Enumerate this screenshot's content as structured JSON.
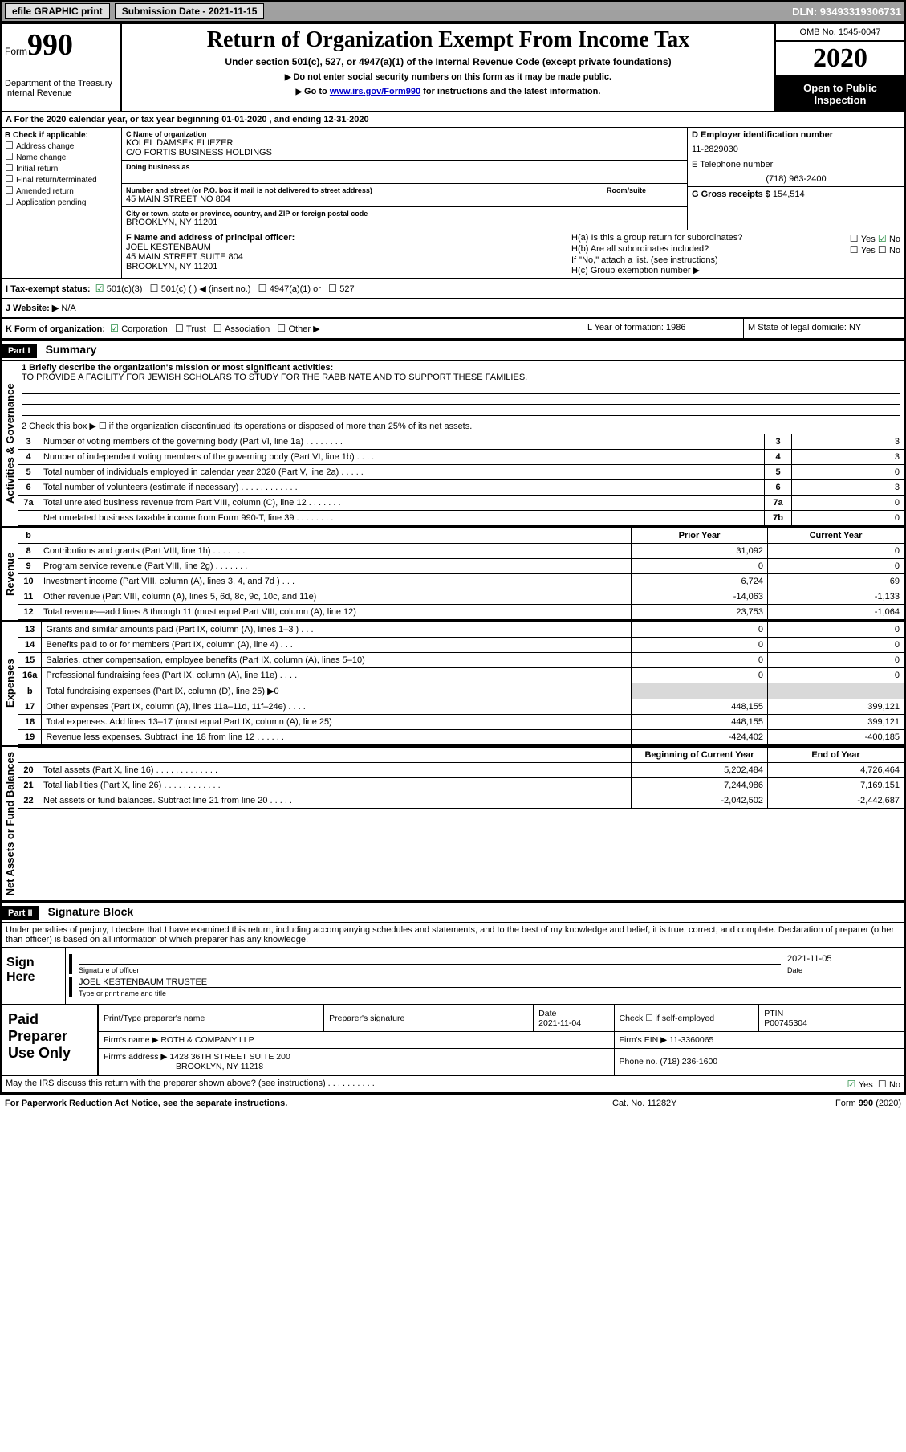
{
  "topbar": {
    "efile": "efile GRAPHIC print",
    "submission_label": "Submission Date - 2021-11-15",
    "dln": "DLN: 93493319306731"
  },
  "header": {
    "form_label": "Form",
    "form_number": "990",
    "dept": "Department of the Treasury\nInternal Revenue",
    "title": "Return of Organization Exempt From Income Tax",
    "subtitle": "Under section 501(c), 527, or 4947(a)(1) of the Internal Revenue Code (except private foundations)",
    "note1": "Do not enter social security numbers on this form as it may be made public.",
    "note2_pre": "Go to ",
    "note2_link": "www.irs.gov/Form990",
    "note2_post": " for instructions and the latest information.",
    "omb": "OMB No. 1545-0047",
    "year": "2020",
    "open": "Open to Public Inspection"
  },
  "lineA": "For the 2020 calendar year, or tax year beginning 01-01-2020     , and ending 12-31-2020",
  "boxB": {
    "label": "B Check if applicable:",
    "opts": [
      "Address change",
      "Name change",
      "Initial return",
      "Final return/terminated",
      "Amended return",
      "Application pending"
    ]
  },
  "boxC": {
    "name_lbl": "C Name of organization",
    "name": "KOLEL DAMSEK ELIEZER",
    "care_of": "C/O FORTIS BUSINESS HOLDINGS",
    "dba_lbl": "Doing business as",
    "addr_lbl": "Number and street (or P.O. box if mail is not delivered to street address)",
    "room_lbl": "Room/suite",
    "addr": "45 MAIN STREET NO 804",
    "city_lbl": "City or town, state or province, country, and ZIP or foreign postal code",
    "city": "BROOKLYN, NY  11201"
  },
  "boxD": {
    "lbl": "D Employer identification number",
    "val": "11-2829030"
  },
  "boxE": {
    "lbl": "E Telephone number",
    "val": "(718) 963-2400"
  },
  "boxG": {
    "lbl": "G Gross receipts $",
    "val": "154,514"
  },
  "boxF": {
    "lbl": "F  Name and address of principal officer:",
    "name": "JOEL KESTENBAUM",
    "addr1": "45 MAIN STREET SUITE 804",
    "addr2": "BROOKLYN, NY  11201"
  },
  "boxH": {
    "a": "H(a)  Is this a group return for subordinates?",
    "b": "H(b)  Are all subordinates included?",
    "bnote": "If \"No,\" attach a list. (see instructions)",
    "c": "H(c)  Group exemption number ▶"
  },
  "boxI": {
    "lbl": "I  Tax-exempt status:",
    "opts": [
      "501(c)(3)",
      "501(c) (   ) ◀ (insert no.)",
      "4947(a)(1) or",
      "527"
    ]
  },
  "boxJ": {
    "lbl": "J  Website: ▶",
    "val": "N/A"
  },
  "boxK": {
    "lbl": "K Form of organization:",
    "opts": [
      "Corporation",
      "Trust",
      "Association",
      "Other ▶"
    ]
  },
  "boxL": {
    "lbl": "L Year of formation: 1986"
  },
  "boxM": {
    "lbl": "M State of legal domicile: NY"
  },
  "part1": {
    "bar": "Part I",
    "title": "Summary",
    "q1": "1  Briefly describe the organization's mission or most significant activities:",
    "q1ans": "TO PROVIDE A FACILITY FOR JEWISH SCHOLARS TO STUDY FOR THE RABBINATE AND TO SUPPORT THESE FAMILIES.",
    "q2": "2   Check this box ▶ ☐  if the organization discontinued its operations or disposed of more than 25% of its net assets."
  },
  "side_labels": {
    "gov": "Activities & Governance",
    "rev": "Revenue",
    "exp": "Expenses",
    "net": "Net Assets or Fund Balances"
  },
  "gov_lines": [
    {
      "n": "3",
      "d": "Number of voting members of the governing body (Part VI, line 1a)   .    .    .    .    .    .    .    .",
      "b": "3",
      "v": "3"
    },
    {
      "n": "4",
      "d": "Number of independent voting members of the governing body (Part VI, line 1b)  .    .    .    .",
      "b": "4",
      "v": "3"
    },
    {
      "n": "5",
      "d": "Total number of individuals employed in calendar year 2020 (Part V, line 2a)   .    .    .    .    .",
      "b": "5",
      "v": "0"
    },
    {
      "n": "6",
      "d": "Total number of volunteers (estimate if necessary)   .    .    .    .    .    .    .    .    .    .    .    .",
      "b": "6",
      "v": "3"
    },
    {
      "n": "7a",
      "d": "Total unrelated business revenue from Part VIII, column (C), line 12   .    .    .    .    .    .    .",
      "b": "7a",
      "v": "0"
    },
    {
      "n": "",
      "d": "Net unrelated business taxable income from Form 990-T, line 39    .    .    .    .    .    .    .    .",
      "b": "7b",
      "v": "0"
    }
  ],
  "two_hdr": {
    "b": "b",
    "prior": "Prior Year",
    "current": "Current Year"
  },
  "rev_lines": [
    {
      "n": "8",
      "d": "Contributions and grants (Part VIII, line 1h)   .    .    .    .    .    .    .",
      "p": "31,092",
      "c": "0"
    },
    {
      "n": "9",
      "d": "Program service revenue (Part VIII, line 2g)    .    .    .    .    .    .    .",
      "p": "0",
      "c": "0"
    },
    {
      "n": "10",
      "d": "Investment income (Part VIII, column (A), lines 3, 4, and 7d )   .    .    .",
      "p": "6,724",
      "c": "69"
    },
    {
      "n": "11",
      "d": "Other revenue (Part VIII, column (A), lines 5, 6d, 8c, 9c, 10c, and 11e)",
      "p": "-14,063",
      "c": "-1,133"
    },
    {
      "n": "12",
      "d": "Total revenue—add lines 8 through 11 (must equal Part VIII, column (A), line 12)",
      "p": "23,753",
      "c": "-1,064"
    }
  ],
  "exp_lines": [
    {
      "n": "13",
      "d": "Grants and similar amounts paid (Part IX, column (A), lines 1–3 )   .    .    .",
      "p": "0",
      "c": "0"
    },
    {
      "n": "14",
      "d": "Benefits paid to or for members (Part IX, column (A), line 4)   .    .    .",
      "p": "0",
      "c": "0"
    },
    {
      "n": "15",
      "d": "Salaries, other compensation, employee benefits (Part IX, column (A), lines 5–10)",
      "p": "0",
      "c": "0"
    },
    {
      "n": "16a",
      "d": "Professional fundraising fees (Part IX, column (A), line 11e)   .    .    .    .",
      "p": "0",
      "c": "0"
    },
    {
      "n": "b",
      "d": "Total fundraising expenses (Part IX, column (D), line 25) ▶0",
      "p": "",
      "c": "",
      "shade": true
    },
    {
      "n": "17",
      "d": "Other expenses (Part IX, column (A), lines 11a–11d, 11f–24e)   .    .    .    .",
      "p": "448,155",
      "c": "399,121"
    },
    {
      "n": "18",
      "d": "Total expenses. Add lines 13–17 (must equal Part IX, column (A), line 25)",
      "p": "448,155",
      "c": "399,121"
    },
    {
      "n": "19",
      "d": "Revenue less expenses. Subtract line 18 from line 12   .    .    .    .    .    .",
      "p": "-424,402",
      "c": "-400,185"
    }
  ],
  "net_hdr": {
    "begin": "Beginning of Current Year",
    "end": "End of Year"
  },
  "net_lines": [
    {
      "n": "20",
      "d": "Total assets (Part X, line 16)   .    .    .    .    .    .    .    .    .    .    .    .    .",
      "p": "5,202,484",
      "c": "4,726,464"
    },
    {
      "n": "21",
      "d": "Total liabilities (Part X, line 26)   .    .    .    .    .    .    .    .    .    .    .    .",
      "p": "7,244,986",
      "c": "7,169,151"
    },
    {
      "n": "22",
      "d": "Net assets or fund balances. Subtract line 21 from line 20   .    .    .    .    .",
      "p": "-2,042,502",
      "c": "-2,442,687"
    }
  ],
  "part2": {
    "bar": "Part II",
    "title": "Signature Block",
    "decl": "Under penalties of perjury, I declare that I have examined this return, including accompanying schedules and statements, and to the best of my knowledge and belief, it is true, correct, and complete. Declaration of preparer (other than officer) is based on all information of which preparer has any knowledge."
  },
  "sign": {
    "here": "Sign Here",
    "sig_lbl": "Signature of officer",
    "date": "2021-11-05",
    "date_lbl": "Date",
    "name": "JOEL KESTENBAUM  TRUSTEE",
    "name_lbl": "Type or print name and title"
  },
  "prep": {
    "label": "Paid Preparer Use Only",
    "h_name": "Print/Type preparer's name",
    "h_sig": "Preparer's signature",
    "h_date": "Date",
    "date": "2021-11-04",
    "h_check": "Check ☐  if self-employed",
    "h_ptin": "PTIN",
    "ptin": "P00745304",
    "firm_lbl": "Firm's name      ▶",
    "firm": "ROTH & COMPANY LLP",
    "ein_lbl": "Firm's EIN ▶",
    "ein": "11-3360065",
    "addr_lbl": "Firm's address ▶",
    "addr1": "1428 36TH STREET SUITE 200",
    "addr2": "BROOKLYN, NY  11218",
    "phone_lbl": "Phone no.",
    "phone": "(718) 236-1600",
    "discuss": "May the IRS discuss this return with the preparer shown above? (see instructions)    .    .    .    .    .    .    .    .    .    ."
  },
  "footer": {
    "left": "For Paperwork Reduction Act Notice, see the separate instructions.",
    "mid": "Cat. No. 11282Y",
    "right": "Form 990 (2020)"
  },
  "yesno": {
    "yes": "Yes",
    "no": "No"
  }
}
